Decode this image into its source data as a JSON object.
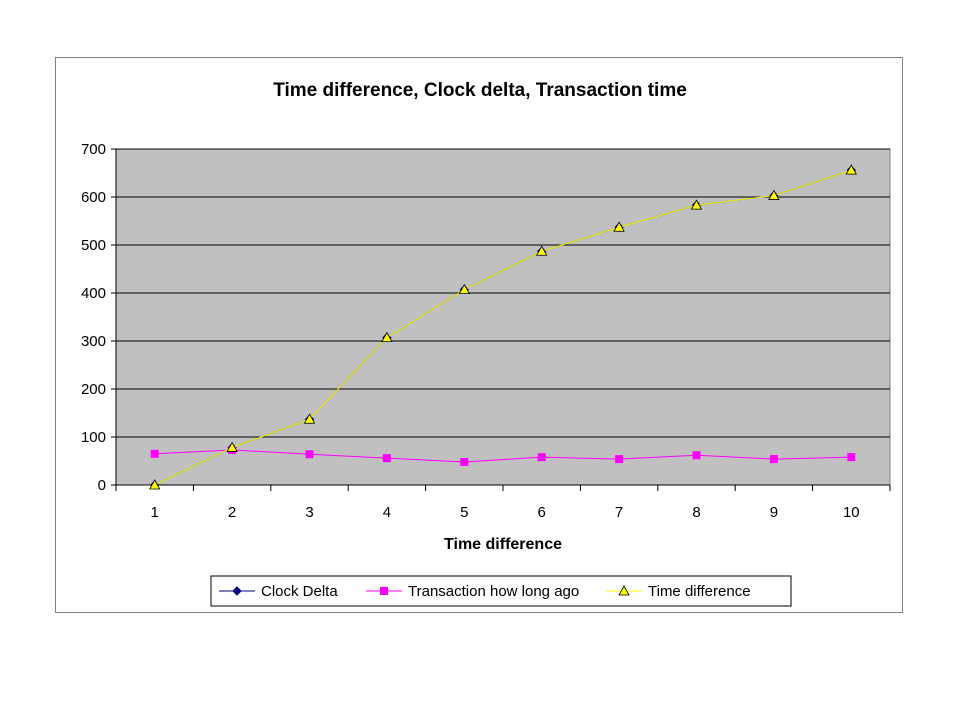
{
  "chart_data": {
    "type": "line",
    "title": "Time difference, Clock delta, Transaction time",
    "xlabel": "Time difference",
    "ylabel": "",
    "categories": [
      "1",
      "2",
      "3",
      "4",
      "5",
      "6",
      "7",
      "8",
      "9",
      "10"
    ],
    "ylim": [
      0,
      700
    ],
    "yticks": [
      0,
      100,
      200,
      300,
      400,
      500,
      600,
      700
    ],
    "grid": true,
    "plot_background": "#c0c0c0",
    "legend_position": "bottom",
    "series": [
      {
        "name": "Clock Delta",
        "color": "#000080",
        "marker": "diamond",
        "values": [
          0,
          78,
          137,
          307,
          407,
          487,
          537,
          583,
          603,
          656
        ]
      },
      {
        "name": "Transaction how long ago",
        "color": "#ff00ff",
        "marker": "square",
        "values": [
          65,
          73,
          64,
          56,
          48,
          58,
          54,
          62,
          54,
          58
        ]
      },
      {
        "name": "Time difference",
        "color": "#ffff00",
        "marker": "triangle",
        "values": [
          0,
          78,
          137,
          307,
          407,
          487,
          537,
          583,
          603,
          656
        ]
      }
    ]
  }
}
